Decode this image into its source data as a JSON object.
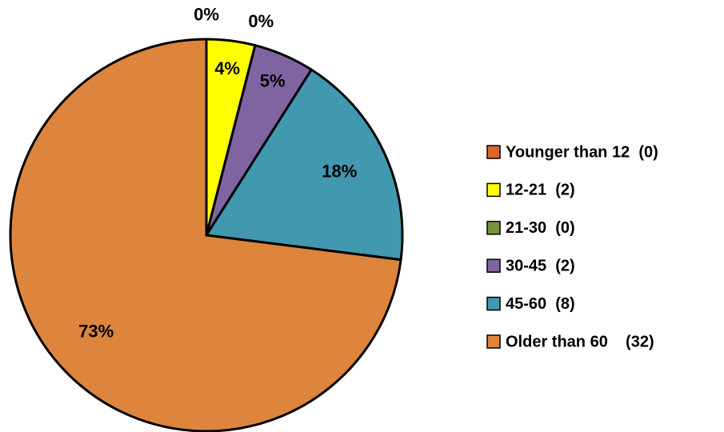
{
  "chart_data": {
    "type": "pie",
    "categories": [
      "Younger than 12  (0)",
      "12-21  (2)",
      "21-30  (0)",
      "30-45  (2)",
      "45-60  (8)",
      "Older than 60    (32)"
    ],
    "values": [
      0,
      4,
      0,
      5,
      18,
      73
    ],
    "value_labels": [
      "0%",
      "4%",
      "0%",
      "5%",
      "18%",
      "73%"
    ],
    "colors": [
      "#d9662b",
      "#ffff00",
      "#77933c",
      "#8064a2",
      "#4198af",
      "#dd853c"
    ],
    "legend": "right"
  }
}
